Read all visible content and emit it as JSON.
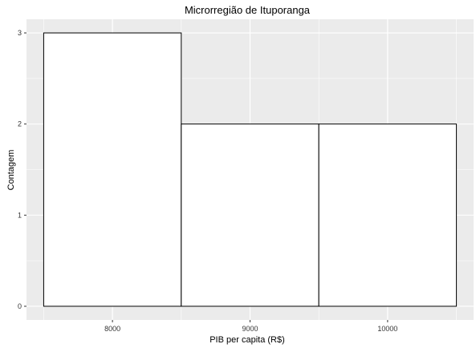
{
  "chart_data": {
    "type": "bar",
    "title": "Microrregião de  Ituporanga",
    "xlabel": "PIB per capita (R$)",
    "ylabel": "Contagem",
    "bins": [
      {
        "start": 7500,
        "end": 8500,
        "count": 3
      },
      {
        "start": 8500,
        "end": 9500,
        "count": 2
      },
      {
        "start": 9500,
        "end": 10500,
        "count": 2
      }
    ],
    "x_ticks": [
      8000,
      9000,
      10000
    ],
    "y_ticks": [
      0,
      1,
      2,
      3
    ],
    "xlim": [
      7375,
      10625
    ],
    "ylim": [
      -0.15,
      3.15
    ],
    "grid": true,
    "colors": {
      "panel_background": "#ebebeb",
      "grid": "#ffffff",
      "bar_fill": "#ffffff",
      "bar_stroke": "#000000"
    }
  }
}
